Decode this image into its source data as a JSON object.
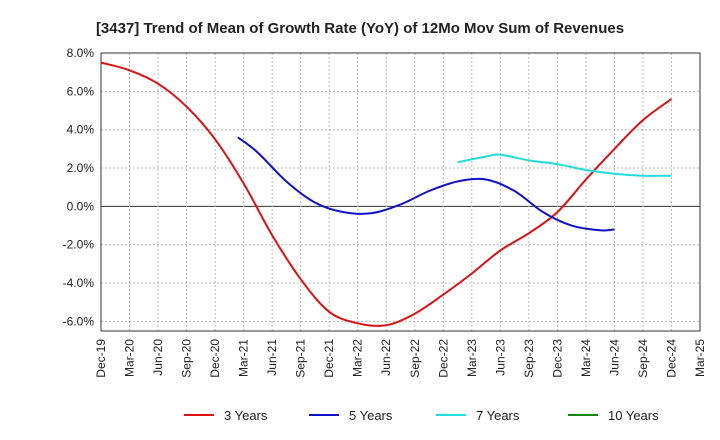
{
  "chart_data": {
    "type": "line",
    "title": "[3437]  Trend of Mean of Growth Rate (YoY) of 12Mo Mov Sum of Revenues",
    "xlabel": "",
    "ylabel": "",
    "ylim": [
      -6.5,
      8.0
    ],
    "yticks": [
      8.0,
      6.0,
      4.0,
      2.0,
      0.0,
      -2.0,
      -4.0,
      -6.0
    ],
    "ytick_labels": [
      "8.0%",
      "6.0%",
      "4.0%",
      "2.0%",
      "0.0%",
      "-2.0%",
      "-4.0%",
      "-6.0%"
    ],
    "x_categories": [
      "Dec-19",
      "Mar-20",
      "Jun-20",
      "Sep-20",
      "Dec-20",
      "Mar-21",
      "Jun-21",
      "Sep-21",
      "Dec-21",
      "Mar-22",
      "Jun-22",
      "Sep-22",
      "Dec-22",
      "Mar-23",
      "Jun-23",
      "Sep-23",
      "Dec-23",
      "Mar-24",
      "Jun-24",
      "Sep-24",
      "Dec-24",
      "Mar-25"
    ],
    "grid": true,
    "legend_position": "bottom",
    "series": [
      {
        "name": "3 Years",
        "color": "#dd1111",
        "points": [
          [
            0,
            7.5
          ],
          [
            1,
            7.1
          ],
          [
            2,
            6.4
          ],
          [
            3,
            5.2
          ],
          [
            4,
            3.5
          ],
          [
            5,
            1.2
          ],
          [
            6,
            -1.5
          ],
          [
            7,
            -3.8
          ],
          [
            8,
            -5.5
          ],
          [
            9,
            -6.1
          ],
          [
            10,
            -6.2
          ],
          [
            11,
            -5.6
          ],
          [
            12,
            -4.6
          ],
          [
            13,
            -3.5
          ],
          [
            14,
            -2.3
          ],
          [
            15,
            -1.4
          ],
          [
            16,
            -0.3
          ],
          [
            17,
            1.4
          ],
          [
            18,
            3.0
          ],
          [
            19,
            4.5
          ],
          [
            20,
            5.6
          ]
        ]
      },
      {
        "name": "5 Years",
        "color": "#1111cc",
        "points": [
          [
            4.8,
            3.6
          ],
          [
            5.5,
            2.8
          ],
          [
            6.5,
            1.3
          ],
          [
            7.5,
            0.2
          ],
          [
            8.5,
            -0.3
          ],
          [
            9.5,
            -0.35
          ],
          [
            10.5,
            0.1
          ],
          [
            11.5,
            0.8
          ],
          [
            12.5,
            1.3
          ],
          [
            13.5,
            1.4
          ],
          [
            14.5,
            0.8
          ],
          [
            15.5,
            -0.3
          ],
          [
            16.5,
            -1.0
          ],
          [
            17.5,
            -1.25
          ],
          [
            18.0,
            -1.2
          ]
        ]
      },
      {
        "name": "7 Years",
        "color": "#22dddd",
        "points": [
          [
            12.5,
            2.3
          ],
          [
            13.5,
            2.6
          ],
          [
            14.0,
            2.7
          ],
          [
            15.0,
            2.4
          ],
          [
            16.0,
            2.2
          ],
          [
            17.0,
            1.9
          ],
          [
            18.0,
            1.7
          ],
          [
            19.0,
            1.6
          ],
          [
            20.0,
            1.6
          ]
        ]
      },
      {
        "name": "10 Years",
        "color": "#118811",
        "points": []
      }
    ]
  }
}
